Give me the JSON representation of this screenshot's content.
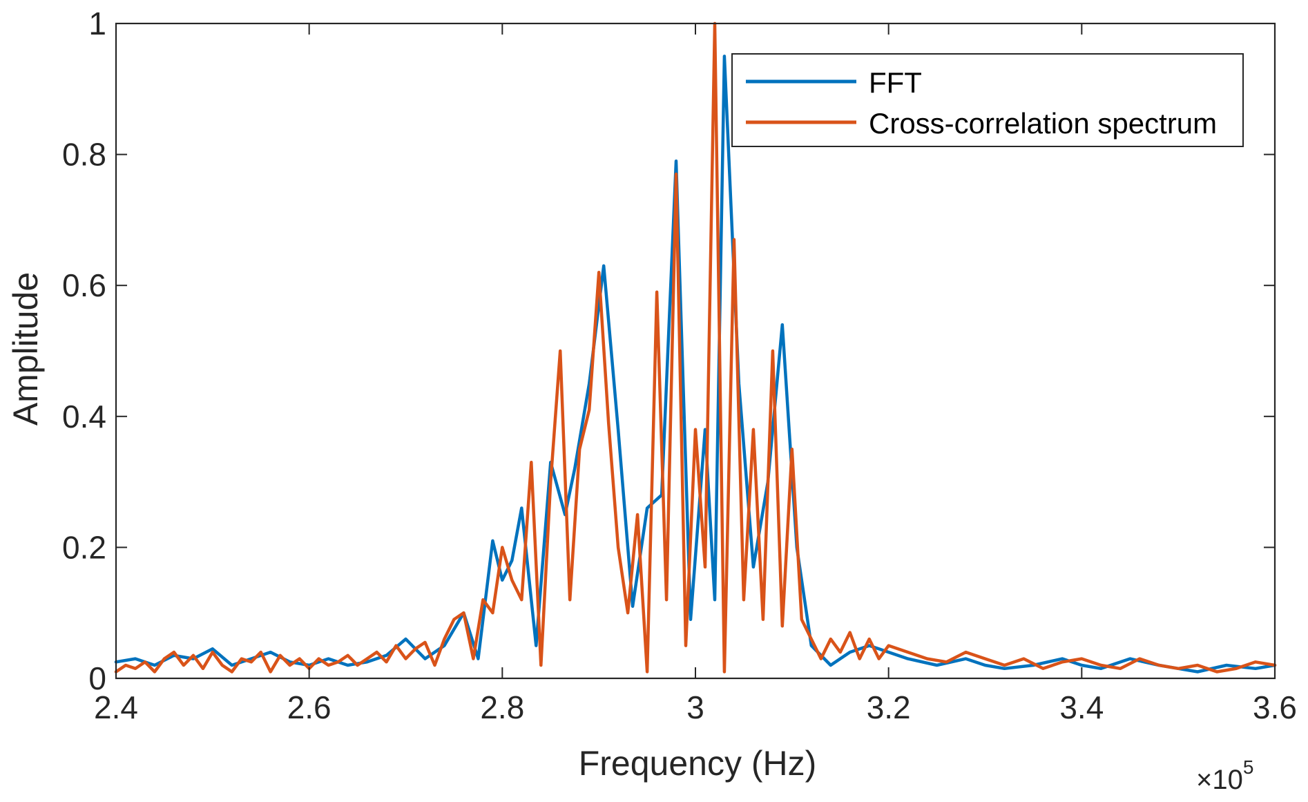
{
  "chart_data": {
    "type": "line",
    "title": "",
    "xlabel": "Frequency (Hz)",
    "ylabel": "Amplitude",
    "x_multiplier_label": {
      "prefix": "×10",
      "exponent": "5"
    },
    "xlim": [
      2.4,
      3.6
    ],
    "ylim": [
      0,
      1
    ],
    "xticks": [
      2.4,
      2.6,
      2.8,
      3.0,
      3.2,
      3.4,
      3.6
    ],
    "xtick_labels": [
      "2.4",
      "2.6",
      "2.8",
      "3",
      "3.2",
      "3.4",
      "3.6"
    ],
    "yticks": [
      0,
      0.2,
      0.4,
      0.6,
      0.8,
      1
    ],
    "ytick_labels": [
      "0",
      "0.2",
      "0.4",
      "0.6",
      "0.8",
      "1"
    ],
    "grid": false,
    "legend_position": "top-right",
    "legend": [
      "FFT",
      "Cross-correlation spectrum"
    ],
    "series": [
      {
        "name": "FFT",
        "color": "#0072BD",
        "x": [
          2.4,
          2.42,
          2.44,
          2.46,
          2.48,
          2.5,
          2.52,
          2.54,
          2.56,
          2.58,
          2.6,
          2.62,
          2.64,
          2.66,
          2.68,
          2.7,
          2.72,
          2.74,
          2.76,
          2.775,
          2.79,
          2.8,
          2.81,
          2.82,
          2.835,
          2.85,
          2.865,
          2.875,
          2.89,
          2.905,
          2.92,
          2.935,
          2.95,
          2.965,
          2.98,
          2.995,
          3.01,
          3.02,
          3.03,
          3.045,
          3.06,
          3.075,
          3.09,
          3.105,
          3.12,
          3.14,
          3.16,
          3.18,
          3.2,
          3.22,
          3.25,
          3.28,
          3.3,
          3.32,
          3.35,
          3.38,
          3.4,
          3.42,
          3.45,
          3.48,
          3.5,
          3.52,
          3.55,
          3.58,
          3.6
        ],
        "y": [
          0.025,
          0.03,
          0.02,
          0.035,
          0.03,
          0.045,
          0.02,
          0.03,
          0.04,
          0.025,
          0.02,
          0.03,
          0.02,
          0.025,
          0.035,
          0.06,
          0.03,
          0.05,
          0.1,
          0.03,
          0.21,
          0.15,
          0.18,
          0.26,
          0.05,
          0.33,
          0.25,
          0.32,
          0.45,
          0.63,
          0.38,
          0.11,
          0.26,
          0.28,
          0.79,
          0.09,
          0.38,
          0.12,
          0.95,
          0.45,
          0.17,
          0.3,
          0.54,
          0.2,
          0.05,
          0.02,
          0.04,
          0.05,
          0.04,
          0.03,
          0.02,
          0.03,
          0.02,
          0.015,
          0.02,
          0.03,
          0.02,
          0.015,
          0.03,
          0.02,
          0.015,
          0.01,
          0.02,
          0.015,
          0.02
        ]
      },
      {
        "name": "Cross-correlation spectrum",
        "color": "#D95319",
        "x": [
          2.4,
          2.41,
          2.42,
          2.43,
          2.44,
          2.45,
          2.46,
          2.47,
          2.48,
          2.49,
          2.5,
          2.51,
          2.52,
          2.53,
          2.54,
          2.55,
          2.56,
          2.57,
          2.58,
          2.59,
          2.6,
          2.61,
          2.62,
          2.63,
          2.64,
          2.65,
          2.66,
          2.67,
          2.68,
          2.69,
          2.7,
          2.71,
          2.72,
          2.73,
          2.74,
          2.75,
          2.76,
          2.77,
          2.78,
          2.79,
          2.8,
          2.81,
          2.82,
          2.83,
          2.84,
          2.85,
          2.86,
          2.87,
          2.88,
          2.89,
          2.9,
          2.91,
          2.92,
          2.93,
          2.94,
          2.95,
          2.96,
          2.97,
          2.98,
          2.99,
          3.0,
          3.01,
          3.02,
          3.03,
          3.04,
          3.05,
          3.06,
          3.07,
          3.08,
          3.09,
          3.1,
          3.11,
          3.12,
          3.13,
          3.14,
          3.15,
          3.16,
          3.17,
          3.18,
          3.19,
          3.2,
          3.22,
          3.24,
          3.26,
          3.28,
          3.3,
          3.32,
          3.34,
          3.36,
          3.38,
          3.4,
          3.42,
          3.44,
          3.46,
          3.48,
          3.5,
          3.52,
          3.54,
          3.56,
          3.58,
          3.6
        ],
        "y": [
          0.01,
          0.02,
          0.015,
          0.025,
          0.01,
          0.03,
          0.04,
          0.02,
          0.035,
          0.015,
          0.04,
          0.02,
          0.01,
          0.03,
          0.025,
          0.04,
          0.01,
          0.035,
          0.02,
          0.03,
          0.015,
          0.03,
          0.02,
          0.025,
          0.035,
          0.02,
          0.03,
          0.04,
          0.025,
          0.05,
          0.03,
          0.045,
          0.055,
          0.02,
          0.06,
          0.09,
          0.1,
          0.03,
          0.12,
          0.1,
          0.2,
          0.15,
          0.12,
          0.33,
          0.02,
          0.3,
          0.5,
          0.12,
          0.35,
          0.41,
          0.62,
          0.39,
          0.2,
          0.1,
          0.25,
          0.01,
          0.59,
          0.12,
          0.77,
          0.05,
          0.38,
          0.17,
          1.0,
          0.01,
          0.67,
          0.12,
          0.38,
          0.09,
          0.5,
          0.08,
          0.35,
          0.09,
          0.06,
          0.03,
          0.06,
          0.04,
          0.07,
          0.03,
          0.06,
          0.03,
          0.05,
          0.04,
          0.03,
          0.025,
          0.04,
          0.03,
          0.02,
          0.03,
          0.015,
          0.025,
          0.03,
          0.02,
          0.015,
          0.03,
          0.02,
          0.015,
          0.02,
          0.01,
          0.015,
          0.025,
          0.02
        ]
      }
    ]
  }
}
